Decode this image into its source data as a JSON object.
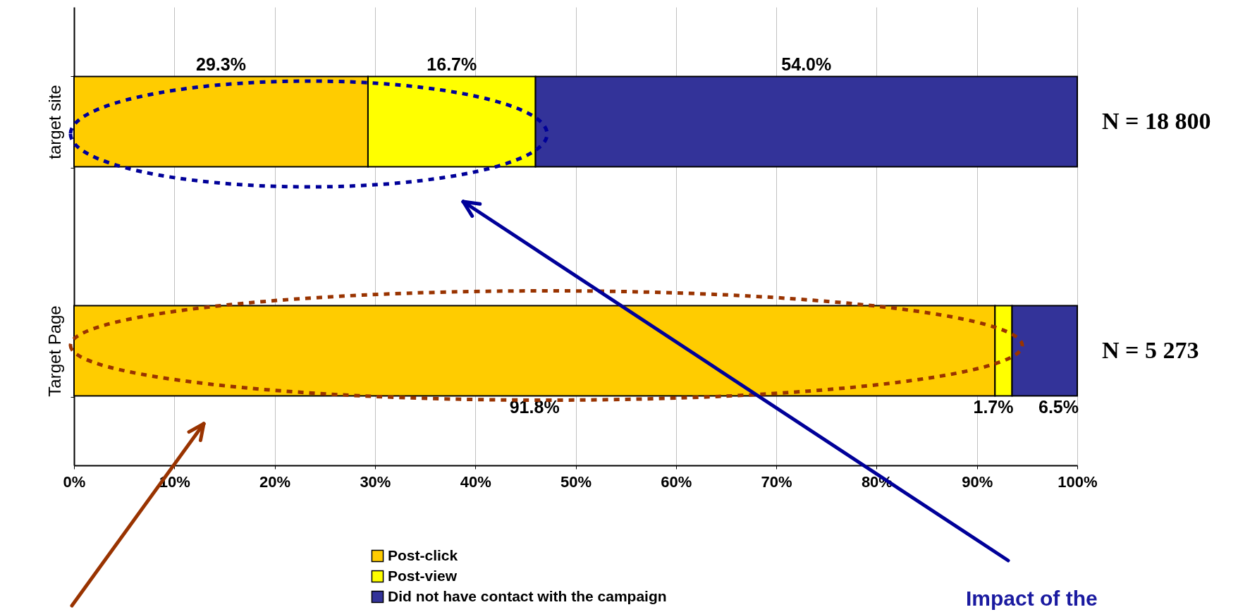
{
  "chart_data": {
    "type": "bar",
    "orientation": "horizontal",
    "stacked": true,
    "categories": [
      "target site",
      "Target Page"
    ],
    "series": [
      {
        "name": "Post-click",
        "color": "#ffcc00",
        "values": [
          29.3,
          91.8
        ],
        "value_labels": [
          "29.3%",
          "91.8%"
        ]
      },
      {
        "name": "Post-view",
        "color": "#ffff00",
        "values": [
          16.7,
          1.7
        ],
        "value_labels": [
          "16.7%",
          "1.7%"
        ]
      },
      {
        "name": "Did not have contact with the campaign",
        "color": "#333399",
        "values": [
          54.0,
          6.5
        ],
        "value_labels": [
          "54.0%",
          "6.5%"
        ]
      }
    ],
    "xlim": [
      0,
      100
    ],
    "xticks": [
      {
        "value": 0,
        "label": "0%"
      },
      {
        "value": 10,
        "label": "10%"
      },
      {
        "value": 20,
        "label": "20%"
      },
      {
        "value": 30,
        "label": "30%"
      },
      {
        "value": 40,
        "label": "40%"
      },
      {
        "value": 50,
        "label": "50%"
      },
      {
        "value": 60,
        "label": "60%"
      },
      {
        "value": 70,
        "label": "70%"
      },
      {
        "value": 80,
        "label": "80%"
      },
      {
        "value": 90,
        "label": "90%"
      },
      {
        "value": 100,
        "label": "100%"
      }
    ],
    "grid": "x",
    "legend": "bottom",
    "annotations": [
      "N = 18 800",
      "N = 5 273",
      "Impact of the"
    ]
  }
}
